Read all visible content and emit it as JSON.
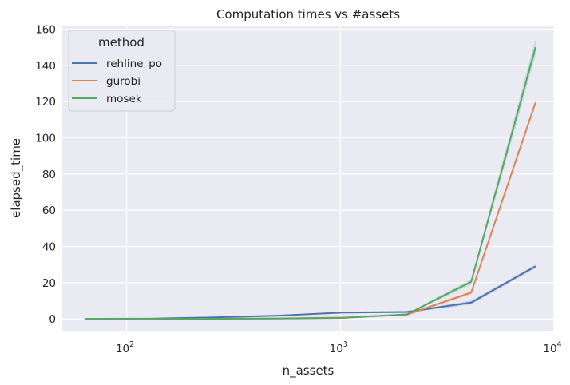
{
  "chart_data": {
    "type": "line",
    "title": "Computation times vs #assets",
    "xlabel": "n_assets",
    "ylabel": "elapsed_time",
    "xscale": "log",
    "xlim": [
      50,
      10000
    ],
    "ylim": [
      -7,
      162
    ],
    "x_ticks": [
      {
        "value": 100,
        "base": "10",
        "exp": "2"
      },
      {
        "value": 1000,
        "base": "10",
        "exp": "3"
      },
      {
        "value": 10000,
        "base": "10",
        "exp": "4"
      }
    ],
    "y_ticks": [
      0,
      20,
      40,
      60,
      80,
      100,
      120,
      140,
      160
    ],
    "grid": true,
    "background": "#eaeaf2",
    "legend": {
      "title": "method",
      "placement": "top-left"
    },
    "x": [
      64,
      128,
      256,
      512,
      1024,
      2048,
      4096,
      8192
    ],
    "series": [
      {
        "name": "rehline_po",
        "color": "#4c72b0",
        "values": [
          0.05,
          0.1,
          0.8,
          1.8,
          3.5,
          3.8,
          9.0,
          29.0
        ],
        "band": [
          0.3,
          0.3,
          0.3,
          0.3,
          0.5,
          0.5,
          1.0,
          1.0
        ]
      },
      {
        "name": "gurobi",
        "color": "#dd8452",
        "values": [
          0.01,
          0.03,
          0.08,
          0.25,
          0.7,
          2.3,
          14.5,
          119.5
        ],
        "band": [
          0.1,
          0.1,
          0.1,
          0.1,
          0.2,
          0.3,
          1.0,
          1.5
        ]
      },
      {
        "name": "mosek",
        "color": "#55a868",
        "values": [
          0.01,
          0.02,
          0.05,
          0.15,
          0.5,
          2.5,
          20.5,
          150.0
        ],
        "band": [
          0.1,
          0.1,
          0.1,
          0.1,
          0.3,
          0.4,
          1.5,
          4.5
        ]
      }
    ]
  }
}
